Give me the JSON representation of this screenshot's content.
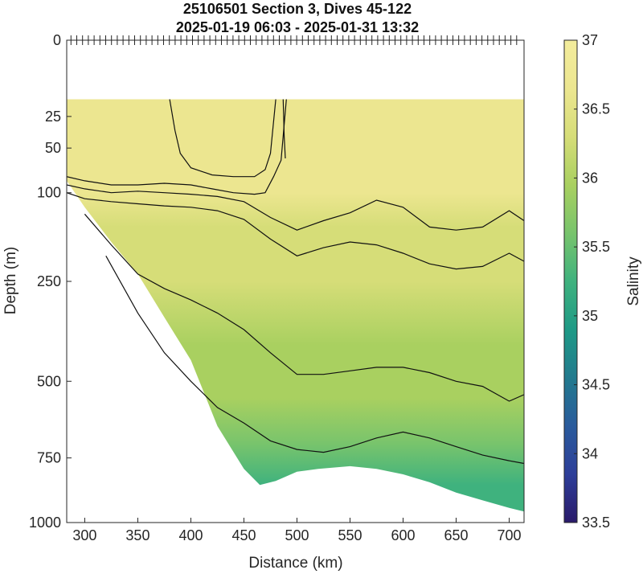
{
  "chart_data": {
    "type": "heatmap",
    "title": "25106501 Section 3, Dives 45-122",
    "subtitle": "2025-01-19 06:03 - 2025-01-31 13:32",
    "xlabel": "Distance (km)",
    "ylabel": "Depth (m)",
    "colorbar_label": "Salinity",
    "xlim": [
      283,
      714
    ],
    "ylim": [
      1000,
      0
    ],
    "y_scale": "sqrt",
    "x_ticks": [
      "300",
      "350",
      "400",
      "450",
      "500",
      "550",
      "600",
      "650",
      "700"
    ],
    "x_tick_values": [
      300,
      350,
      400,
      450,
      500,
      550,
      600,
      650,
      700
    ],
    "y_ticks": [
      "0",
      "25",
      "50",
      "100",
      "250",
      "500",
      "750",
      "1000"
    ],
    "y_tick_values": [
      0,
      25,
      50,
      100,
      250,
      500,
      750,
      1000
    ],
    "colorbar_ticks": [
      "33.5",
      "34",
      "34.5",
      "35",
      "35.5",
      "36",
      "36.5",
      "37"
    ],
    "colorbar_tick_values": [
      33.5,
      34,
      34.5,
      35,
      35.5,
      36,
      36.5,
      37
    ],
    "color_range": [
      33.5,
      37
    ],
    "colormap": [
      "#2a1a6a",
      "#2d3e99",
      "#2a5b9c",
      "#227a8e",
      "#1e9a86",
      "#3fb27e",
      "#78c46c",
      "#a9d060",
      "#d6dd78",
      "#ece690",
      "#f3ec9c"
    ],
    "data_top_depth": 15,
    "bottom_boundary": {
      "x": [
        283,
        300,
        325,
        350,
        375,
        400,
        425,
        450,
        465,
        480,
        500,
        520,
        550,
        575,
        600,
        625,
        650,
        675,
        700,
        714
      ],
      "depth": [
        85,
        120,
        175,
        235,
        330,
        440,
        640,
        790,
        850,
        835,
        800,
        790,
        780,
        790,
        810,
        840,
        880,
        910,
        940,
        955
      ]
    },
    "contours": [
      {
        "level": 36.7,
        "x": [
          380,
          385,
          390,
          400,
          420,
          440,
          460,
          470,
          475,
          480
        ],
        "depth": [
          15,
          35,
          55,
          70,
          78,
          80,
          80,
          72,
          55,
          15
        ]
      },
      {
        "level": 36.7,
        "x": [
          487,
          488,
          489
        ],
        "depth": [
          15,
          40,
          60
        ]
      },
      {
        "level": 36.6,
        "x": [
          283,
          300,
          325,
          350,
          375,
          400,
          420,
          440,
          460,
          470,
          478,
          485,
          490
        ],
        "depth": [
          80,
          85,
          90,
          90,
          88,
          90,
          95,
          100,
          102,
          100,
          80,
          62,
          15
        ]
      },
      {
        "level": 36.5,
        "x": [
          283,
          300,
          325,
          350,
          375,
          400,
          425,
          450,
          475,
          500,
          525,
          550,
          575,
          600,
          625,
          650,
          675,
          700,
          714
        ],
        "depth": [
          90,
          95,
          100,
          98,
          100,
          102,
          105,
          112,
          135,
          155,
          140,
          128,
          110,
          120,
          150,
          155,
          150,
          125,
          140
        ]
      },
      {
        "level": 36.4,
        "x": [
          283,
          300,
          325,
          350,
          375,
          400,
          425,
          450,
          475,
          500,
          525,
          550,
          575,
          600,
          625,
          650,
          675,
          700,
          714
        ],
        "depth": [
          100,
          108,
          112,
          115,
          118,
          120,
          125,
          138,
          170,
          200,
          185,
          175,
          180,
          195,
          215,
          225,
          220,
          195,
          210
        ]
      },
      {
        "level": 36.0,
        "x": [
          300,
          325,
          350,
          375,
          400,
          425,
          450,
          475,
          500,
          525,
          550,
          575,
          600,
          625,
          650,
          675,
          700,
          714
        ],
        "depth": [
          130,
          180,
          235,
          265,
          290,
          320,
          360,
          420,
          480,
          480,
          470,
          460,
          460,
          475,
          500,
          515,
          560,
          540
        ]
      },
      {
        "level": 35.5,
        "x": [
          320,
          350,
          375,
          400,
          425,
          450,
          475,
          500,
          525,
          550,
          575,
          600,
          625,
          650,
          675,
          700,
          714
        ],
        "depth": [
          200,
          320,
          420,
          500,
          580,
          630,
          690,
          720,
          730,
          710,
          680,
          660,
          680,
          710,
          740,
          760,
          770
        ]
      }
    ],
    "grid": false,
    "colorbar_placement": "right"
  }
}
